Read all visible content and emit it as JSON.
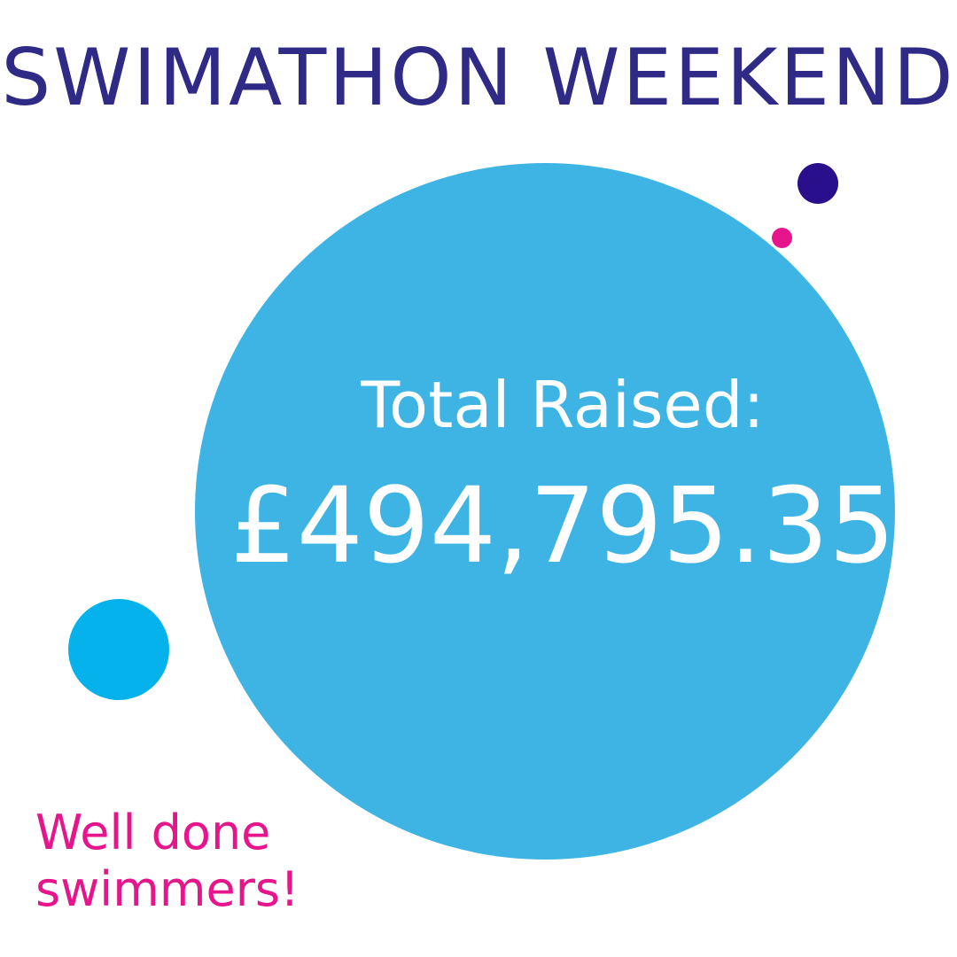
{
  "title": "SWIMATHON WEEKEND",
  "total": {
    "label": "Total Raised:",
    "amount": "£494,795.35"
  },
  "message": "Well done swimmers!",
  "colors": {
    "title": "#2e2a86",
    "main_circle": "#3eb4e5",
    "dot_navy": "#2a0f8c",
    "dot_pink": "#e6158c",
    "dot_cyan": "#05b2eb",
    "message": "#e6158c",
    "total_text": "#ffffff"
  }
}
